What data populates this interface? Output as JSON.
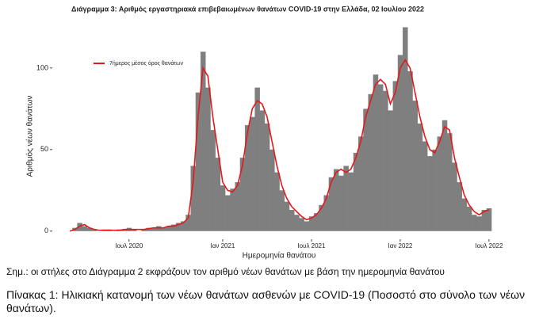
{
  "chart_data": {
    "type": "bar",
    "title": "Διάγραμμα 3: Αριθμός εργαστηριακά επιβεβαιωμένων θανάτων COVID-19 στην Ελλάδα, 02 Ιουλίου 2022",
    "xlabel": "Ημερομηνία θανάτου",
    "ylabel": "Αριθμός νέων θανάτων",
    "categories": [
      null,
      null,
      null,
      null,
      null,
      null,
      null,
      null,
      null,
      null,
      null,
      null,
      "Ιουλ 2020",
      null,
      null,
      null,
      null,
      null,
      null,
      null,
      null,
      null,
      null,
      null,
      null,
      null,
      null,
      null,
      null,
      null,
      null,
      "Ιαν 2021",
      null,
      null,
      null,
      null,
      null,
      null,
      null,
      null,
      null,
      null,
      null,
      null,
      null,
      null,
      null,
      null,
      null,
      "Ιουλ 2021",
      null,
      null,
      null,
      null,
      null,
      null,
      null,
      null,
      null,
      null,
      null,
      null,
      null,
      null,
      null,
      null,
      null,
      "Ιαν 2022",
      null,
      null,
      null,
      null,
      null,
      null,
      null,
      null,
      null,
      null,
      null,
      null,
      null,
      null,
      null,
      null,
      null,
      "Ιουλ 2022"
    ],
    "series": [
      {
        "type": "bar",
        "color": "#7f7f7f",
        "values": [
          0,
          2,
          5,
          3,
          2,
          1,
          0,
          1,
          1,
          0,
          1,
          1,
          2,
          1,
          0,
          1,
          2,
          2,
          3,
          2,
          3,
          4,
          5,
          6,
          10,
          40,
          85,
          110,
          88,
          62,
          45,
          28,
          22,
          26,
          30,
          45,
          65,
          70,
          88,
          74,
          66,
          50,
          36,
          25,
          18,
          13,
          10,
          8,
          6,
          9,
          11,
          16,
          22,
          33,
          38,
          34,
          40,
          36,
          48,
          58,
          75,
          84,
          96,
          90,
          86,
          74,
          92,
          108,
          125,
          98,
          80,
          66,
          55,
          46,
          50,
          58,
          68,
          60,
          42,
          30,
          20,
          15,
          10,
          9,
          13,
          14
        ]
      },
      {
        "type": "line",
        "name": "7ήμερος μέσος όρος θανάτων",
        "color": "#e31a1c",
        "values": [
          0,
          1,
          3,
          4,
          2,
          1,
          0.5,
          0.5,
          0.5,
          0.5,
          0.5,
          1,
          1,
          1,
          1,
          1,
          1.5,
          2,
          2,
          2,
          3,
          3,
          4,
          5,
          8,
          30,
          70,
          100,
          95,
          70,
          50,
          30,
          25,
          24,
          28,
          40,
          60,
          75,
          80,
          78,
          70,
          55,
          40,
          28,
          20,
          15,
          12,
          9,
          7,
          8,
          10,
          14,
          20,
          30,
          36,
          38,
          36,
          38,
          45,
          55,
          70,
          80,
          90,
          93,
          90,
          78,
          85,
          100,
          105,
          100,
          85,
          70,
          58,
          50,
          48,
          55,
          64,
          62,
          45,
          33,
          22,
          16,
          12,
          10,
          12,
          13
        ]
      }
    ],
    "ylim": [
      -4,
      132
    ],
    "yticks": [
      0,
      50,
      100
    ],
    "grid": false,
    "legend": "top-left"
  },
  "note": "Σημ.: οι στήλες στο Διάγραμμα 2 εκφράζουν τον αριθμό νέων θανάτων με βάση την ημερομηνία θανάτου",
  "caption": "Πίνακας 1: Ηλικιακή κατανομή των νέων θανάτων ασθενών με COVID-19 (Ποσοστό στο σύνολο των νέων θανάτων)."
}
